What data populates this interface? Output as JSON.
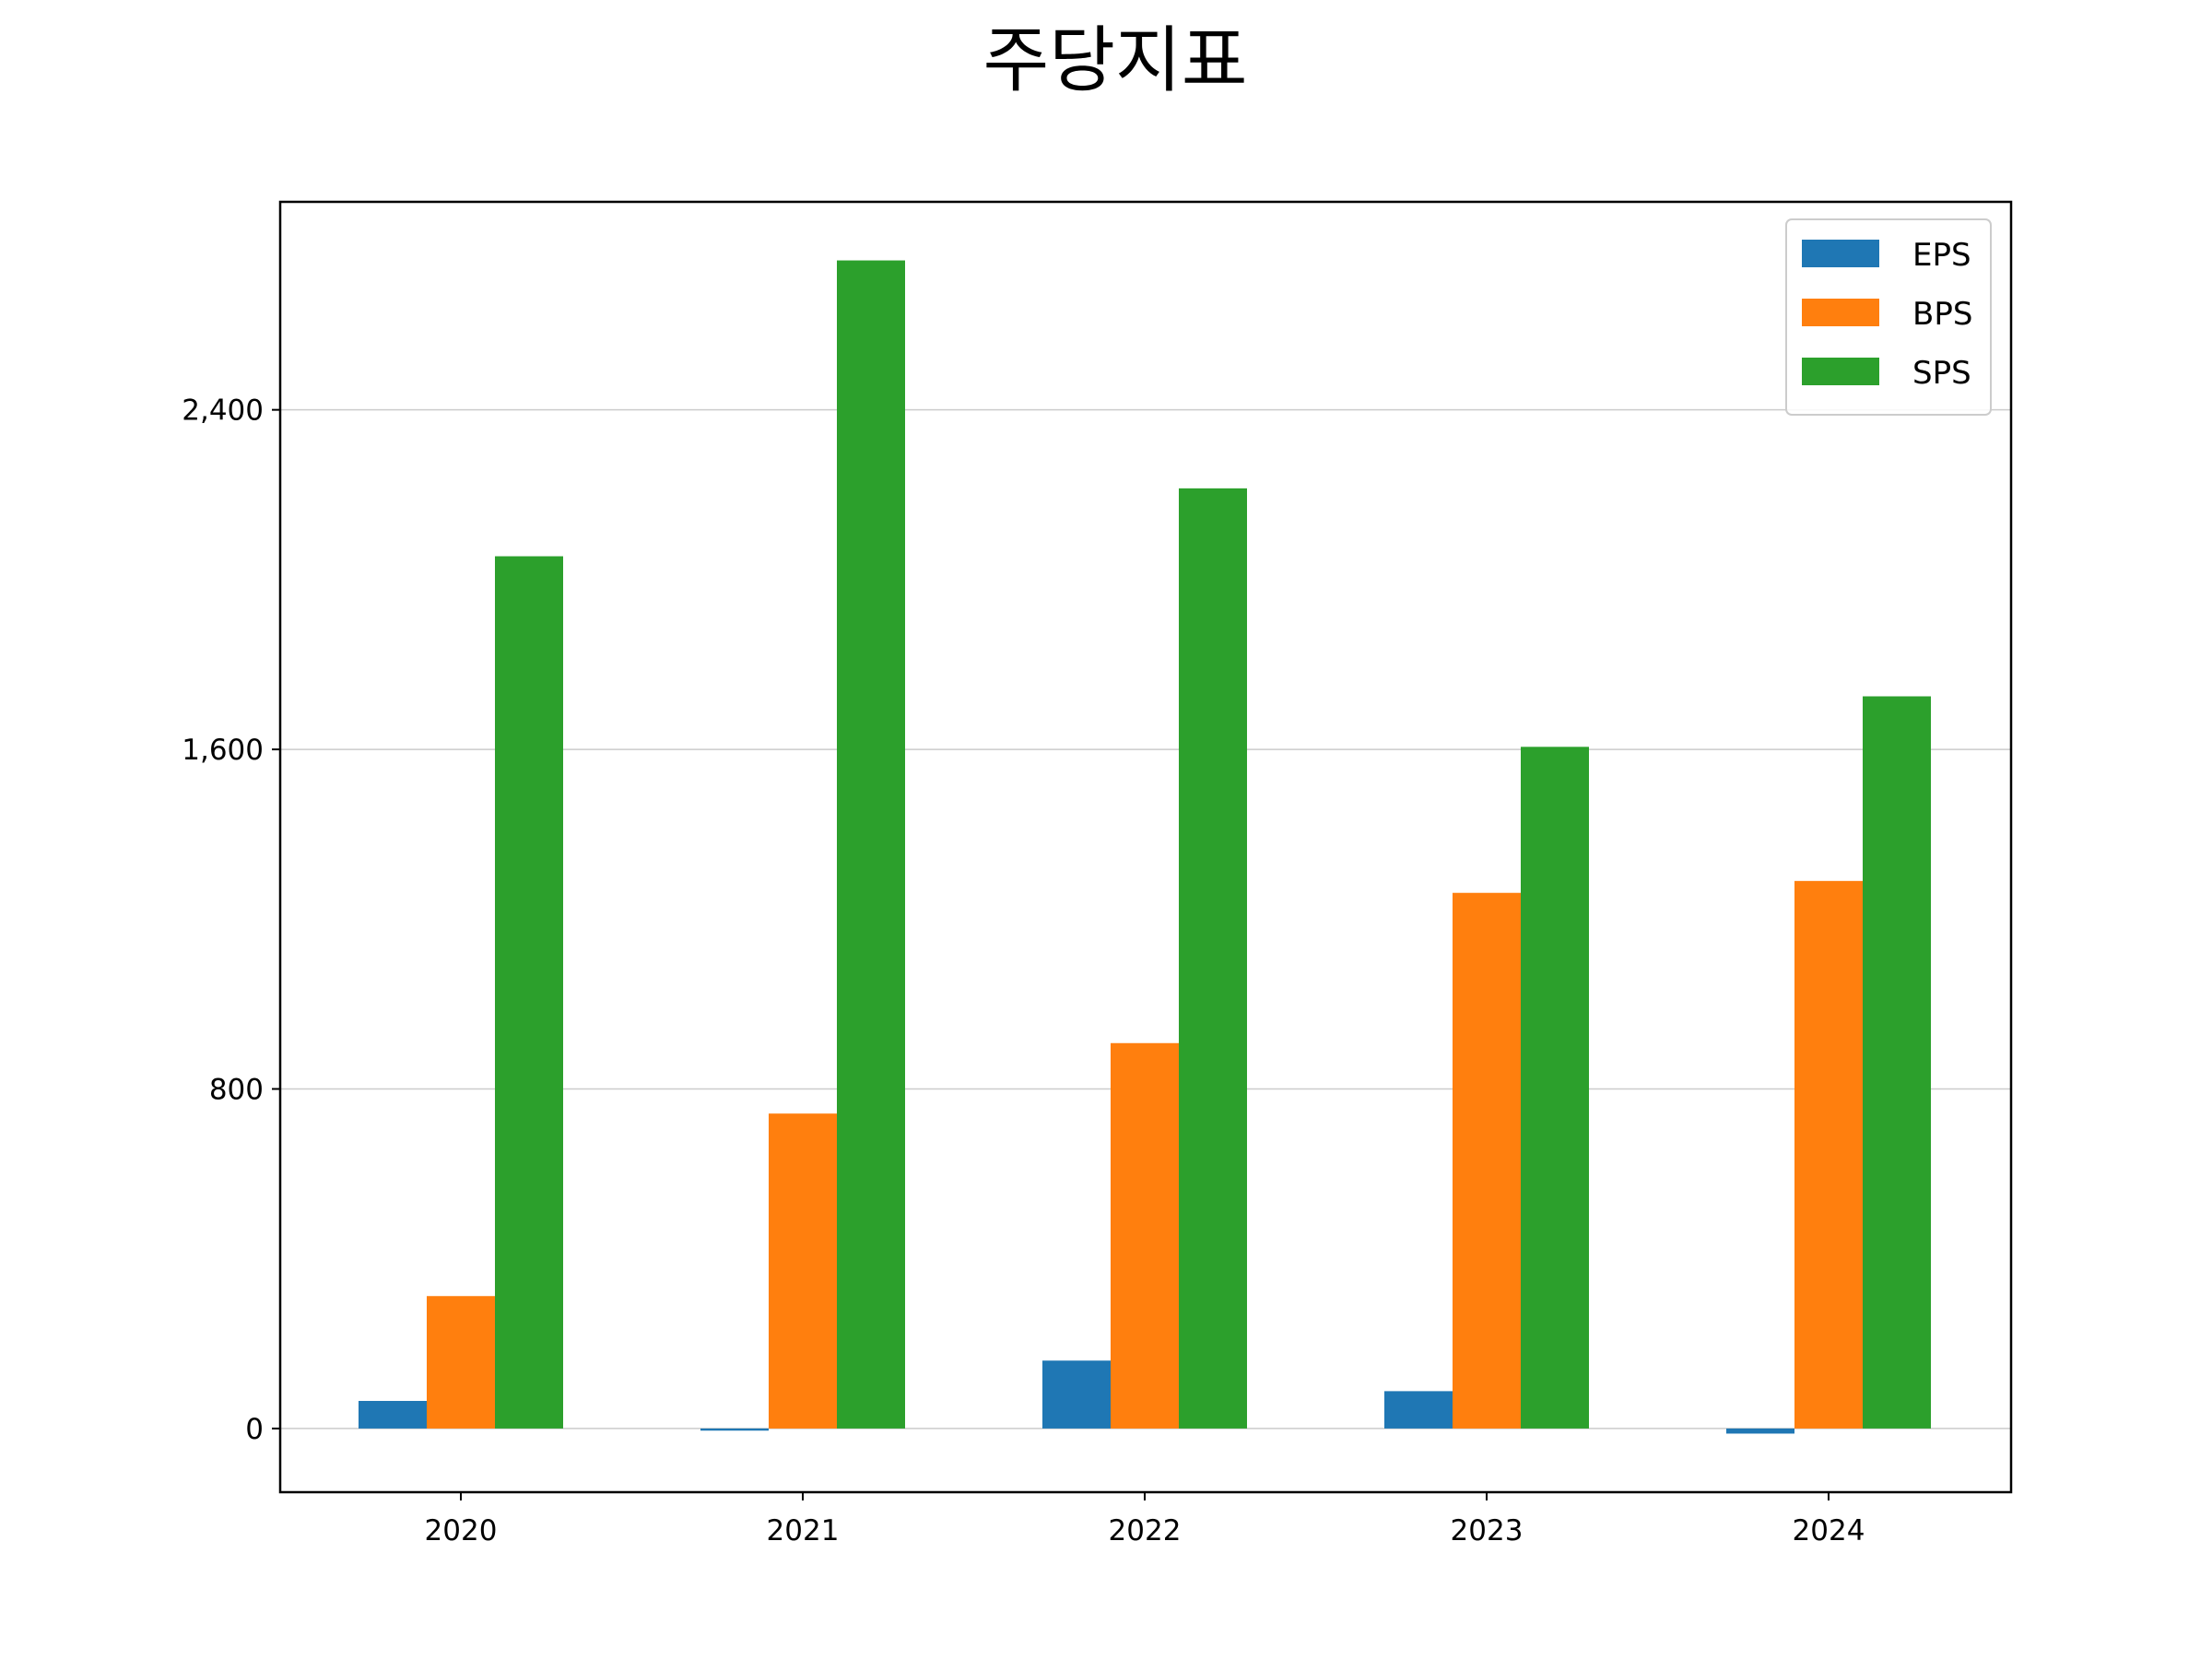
{
  "chart_data": {
    "type": "bar",
    "title": "주당지표",
    "xlabel": "",
    "ylabel": "",
    "categories": [
      "2020",
      "2021",
      "2022",
      "2023",
      "2024"
    ],
    "series": [
      {
        "name": "EPS",
        "color": "#1f77b4",
        "values": [
          65,
          -5,
          160,
          88,
          -12
        ]
      },
      {
        "name": "BPS",
        "color": "#ff7f0e",
        "values": [
          312,
          742,
          908,
          1262,
          1290
        ]
      },
      {
        "name": "SPS",
        "color": "#2ca02c",
        "values": [
          2055,
          2752,
          2215,
          1606,
          1725
        ]
      }
    ],
    "ylim": [
      -150,
      2890
    ],
    "yticks": [
      0,
      800,
      1600,
      2400
    ],
    "ytick_labels": [
      "0",
      "800",
      "1,600",
      "2,400"
    ],
    "grid": "y",
    "legend_position": "top-right"
  }
}
